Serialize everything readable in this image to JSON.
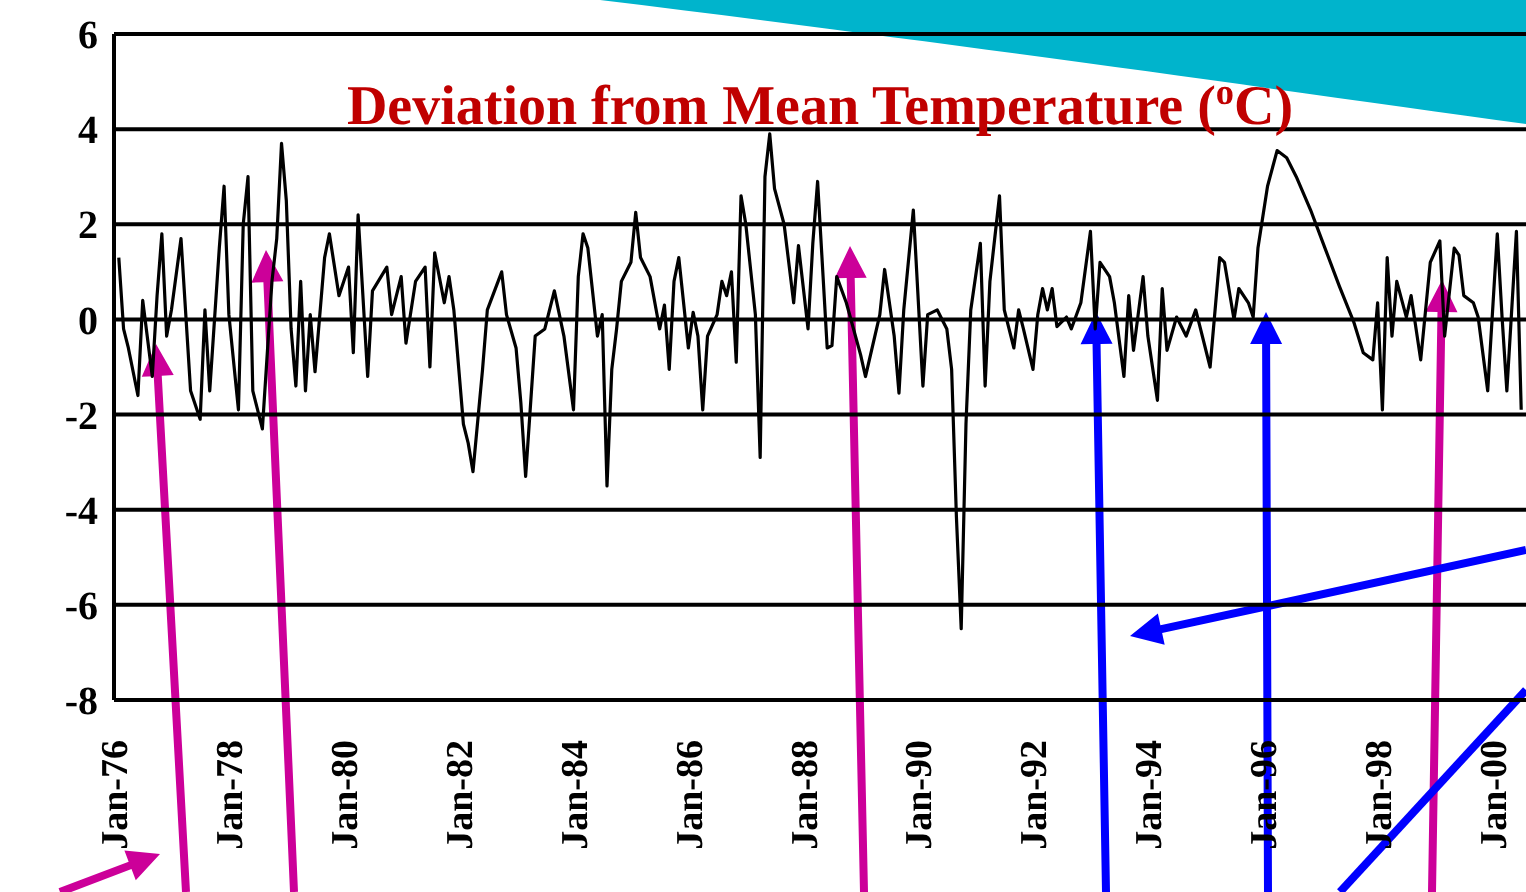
{
  "chart_data": {
    "type": "line",
    "title": "Deviation from Mean Temperature ($^{o}$C)",
    "x": [
      "1976-02",
      "1976-03",
      "1976-04",
      "1976-06",
      "1976-07",
      "1976-09",
      "1976-10",
      "1976-11",
      "1976-12",
      "1977-01",
      "1977-03",
      "1977-05",
      "1977-07",
      "1977-08",
      "1977-09",
      "1977-11",
      "1977-12",
      "1978-01",
      "1978-03",
      "1978-04",
      "1978-05",
      "1978-06",
      "1978-08",
      "1978-10",
      "1978-11",
      "1978-12",
      "1979-01",
      "1979-02",
      "1979-03",
      "1979-04",
      "1979-05",
      "1979-06",
      "1979-07",
      "1979-09",
      "1979-10",
      "1979-12",
      "1980-02",
      "1980-03",
      "1980-04",
      "1980-06",
      "1980-07",
      "1980-10",
      "1980-11",
      "1981-01",
      "1981-02",
      "1981-04",
      "1981-06",
      "1981-07",
      "1981-08",
      "1981-10",
      "1981-11",
      "1981-12",
      "1982-02",
      "1982-03",
      "1982-04",
      "1982-06",
      "1982-07",
      "1982-10",
      "1982-11",
      "1983-01",
      "1983-02",
      "1983-03",
      "1983-05",
      "1983-07",
      "1983-09",
      "1983-11",
      "1984-01",
      "1984-02",
      "1984-03",
      "1984-04",
      "1984-06",
      "1984-07",
      "1984-08",
      "1984-09",
      "1984-10",
      "1984-11",
      "1985-01",
      "1985-02",
      "1985-03",
      "1985-05",
      "1985-07",
      "1985-08",
      "1985-09",
      "1985-10",
      "1985-11",
      "1986-01",
      "1986-02",
      "1986-03",
      "1986-04",
      "1986-05",
      "1986-07",
      "1986-08",
      "1986-09",
      "1986-10",
      "1986-11",
      "1986-12",
      "1987-01",
      "1987-03",
      "1987-04",
      "1987-05",
      "1987-06",
      "1987-07",
      "1987-09",
      "1987-11",
      "1987-12",
      "1988-02",
      "1988-03",
      "1988-04",
      "1988-06",
      "1988-07",
      "1988-08",
      "1988-10",
      "1989-01",
      "1989-02",
      "1989-05",
      "1989-06",
      "1989-08",
      "1989-09",
      "1989-10",
      "1989-12",
      "1990-02",
      "1990-03",
      "1990-05",
      "1990-07",
      "1990-08",
      "1990-09",
      "1990-10",
      "1990-11",
      "1990-12",
      "1991-02",
      "1991-03",
      "1991-04",
      "1991-06",
      "1991-07",
      "1991-09",
      "1991-10",
      "1991-11",
      "1992-01",
      "1992-02",
      "1992-03",
      "1992-04",
      "1992-05",
      "1992-06",
      "1992-08",
      "1992-09",
      "1992-11",
      "1993-01",
      "1993-02",
      "1993-03",
      "1993-05",
      "1993-06",
      "1993-08",
      "1993-09",
      "1993-10",
      "1993-12",
      "1994-01",
      "1994-03",
      "1994-04",
      "1994-05",
      "1994-07",
      "1994-09",
      "1994-11",
      "1994-12",
      "1995-02",
      "1995-04",
      "1995-05",
      "1995-07",
      "1995-08",
      "1995-10",
      "1995-11",
      "1995-12",
      "1996-02",
      "1996-04",
      "1996-06",
      "1996-08",
      "1996-11",
      "1997-02",
      "1997-05",
      "1997-08",
      "1997-10",
      "1997-12",
      "1998-01",
      "1998-02",
      "1998-03",
      "1998-04",
      "1998-05",
      "1998-07",
      "1998-08",
      "1998-10",
      "1998-12",
      "1999-02",
      "1999-03",
      "1999-05",
      "1999-06",
      "1999-07",
      "1999-09",
      "1999-10",
      "1999-12",
      "2000-02",
      "2000-03",
      "2000-04",
      "2000-06",
      "2000-07"
    ],
    "series": [
      {
        "color": "#000000",
        "values": [
          1.3,
          -0.2,
          -0.6,
          -1.6,
          0.4,
          -1.2,
          0.5,
          1.8,
          -0.35,
          0.2,
          1.7,
          -1.5,
          -2.1,
          0.2,
          -1.5,
          1.5,
          2.8,
          0.1,
          -1.9,
          2.0,
          3.0,
          -1.5,
          -2.3,
          0.8,
          1.7,
          3.7,
          2.5,
          -0.2,
          -1.4,
          0.8,
          -1.5,
          0.1,
          -1.1,
          1.3,
          1.8,
          0.5,
          1.1,
          -0.7,
          2.2,
          -1.2,
          0.6,
          1.1,
          0.1,
          0.9,
          -0.5,
          0.8,
          1.1,
          -1.0,
          1.4,
          0.35,
          0.9,
          0.2,
          -2.2,
          -2.6,
          -3.2,
          -1.05,
          0.2,
          1.0,
          0.1,
          -0.6,
          -1.75,
          -3.3,
          -0.35,
          -0.2,
          0.6,
          -0.35,
          -1.9,
          0.9,
          1.8,
          1.5,
          -0.35,
          0.1,
          -3.5,
          -1.05,
          -0.2,
          0.8,
          1.2,
          2.25,
          1.3,
          0.9,
          -0.2,
          0.3,
          -1.05,
          0.8,
          1.3,
          -0.6,
          0.15,
          -0.35,
          -1.9,
          -0.35,
          0.1,
          0.8,
          0.5,
          1.0,
          -0.9,
          2.6,
          2.0,
          0.1,
          -2.9,
          3.0,
          3.9,
          2.75,
          2.0,
          0.35,
          1.55,
          -0.2,
          1.6,
          2.9,
          -0.6,
          -0.55,
          0.9,
          0.35,
          -0.75,
          -1.2,
          0.1,
          1.05,
          -0.35,
          -1.55,
          0.2,
          2.3,
          -1.4,
          0.1,
          0.2,
          -0.2,
          -1.05,
          -4.15,
          -6.5,
          -2.2,
          0.2,
          1.6,
          -1.4,
          0.8,
          2.6,
          0.2,
          -0.6,
          0.2,
          -0.2,
          -1.05,
          0.1,
          0.65,
          0.2,
          0.65,
          -0.15,
          0.05,
          -0.2,
          0.35,
          1.85,
          -0.2,
          1.2,
          0.9,
          0.35,
          -1.2,
          0.5,
          -0.65,
          0.9,
          -0.35,
          -1.7,
          0.65,
          -0.65,
          0.05,
          -0.35,
          0.2,
          -0.2,
          -1.0,
          1.3,
          1.2,
          0,
          0.65,
          0.35,
          0.05,
          1.5,
          2.8,
          3.55,
          3.4,
          3.0,
          2.3,
          1.5,
          0.7,
          -0.05,
          -0.7,
          -0.85,
          0.35,
          -1.9,
          1.3,
          -0.35,
          0.8,
          0.05,
          0.5,
          -0.85,
          1.2,
          1.65,
          -0.35,
          1.5,
          1.35,
          0.5,
          0.35,
          0.05,
          -1.5,
          1.8,
          0.05,
          -1.5,
          1.85,
          -1.9
        ]
      }
    ],
    "xlim": [
      "1976-01",
      "2000-08"
    ],
    "xticks": [
      {
        "value": "1976-01",
        "label": "Jan-76"
      },
      {
        "value": "1978-01",
        "label": "Jan-78"
      },
      {
        "value": "1980-01",
        "label": "Jan-80"
      },
      {
        "value": "1982-01",
        "label": "Jan-82"
      },
      {
        "value": "1984-01",
        "label": "Jan-84"
      },
      {
        "value": "1986-01",
        "label": "Jan-86"
      },
      {
        "value": "1988-01",
        "label": "Jan-88"
      },
      {
        "value": "1990-01",
        "label": "Jan-90"
      },
      {
        "value": "1992-01",
        "label": "Jan-92"
      },
      {
        "value": "1994-01",
        "label": "Jan-94"
      },
      {
        "value": "1996-01",
        "label": "Jan-96"
      },
      {
        "value": "1998-01",
        "label": "Jan-98"
      },
      {
        "value": "2000-01",
        "label": "Jan-00"
      }
    ],
    "ylim": [
      -8,
      6
    ],
    "yticks": [
      -8,
      -6,
      -4,
      -2,
      0,
      2,
      4,
      6
    ],
    "grid": "y"
  }
}
